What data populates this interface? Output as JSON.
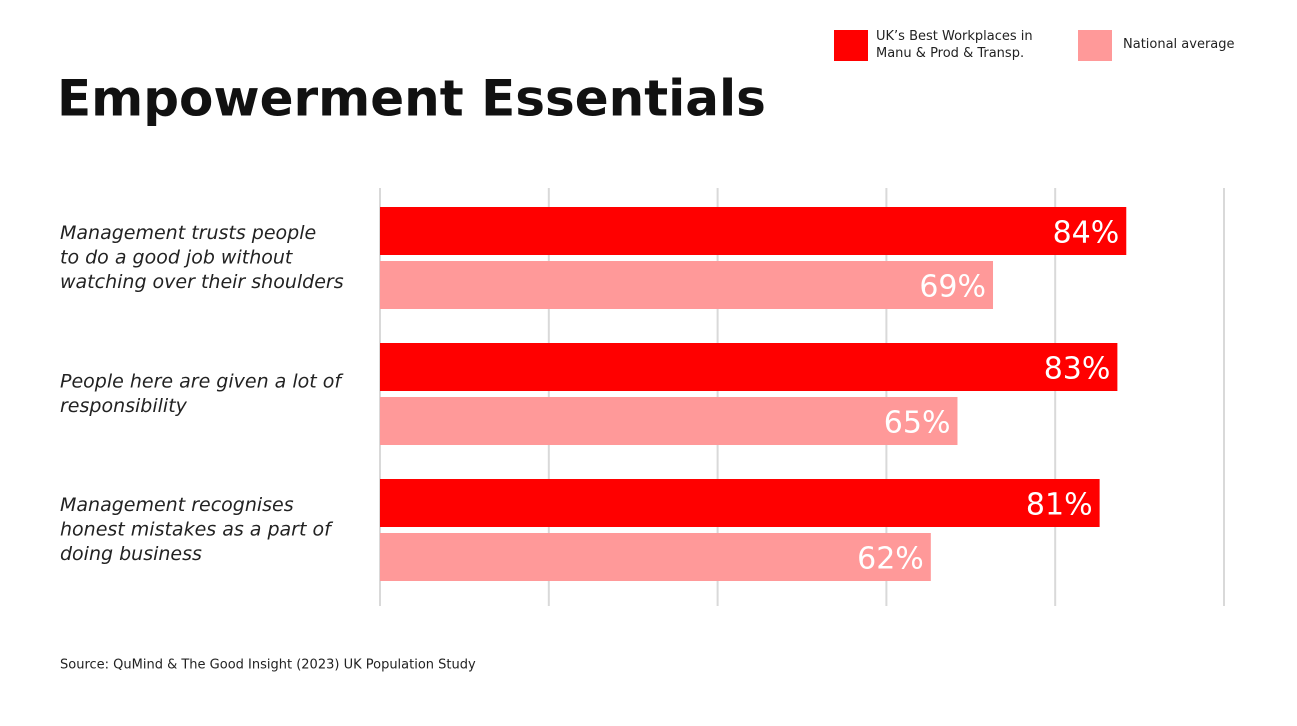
{
  "chart_data": {
    "type": "hbar",
    "title": "Empowerment Essentials",
    "source": "Source: QuMind & The Good Insight (2023) UK Population Study",
    "categories": [
      [
        "Management trusts people",
        "to do a good job without",
        "watching over their shoulders"
      ],
      [
        "People here are given a lot of",
        "responsibility"
      ],
      [
        "Management recognises",
        "honest mistakes as a part of",
        "doing business"
      ]
    ],
    "series": [
      {
        "name": "UK’s Best Workplaces in Manu & Prod & Transp.",
        "color": "#ff0000",
        "values": [
          84,
          83,
          81
        ],
        "value_labels": [
          "84%",
          "83%",
          "81%"
        ]
      },
      {
        "name": "National average",
        "color": "#ff9999",
        "values": [
          69,
          65,
          62
        ],
        "value_labels": [
          "69%",
          "65%",
          "62%"
        ]
      }
    ],
    "xlim": [
      0,
      95
    ],
    "xticks": [
      0,
      19,
      38,
      57,
      76,
      95
    ],
    "grid": true,
    "legend": "top-right"
  }
}
